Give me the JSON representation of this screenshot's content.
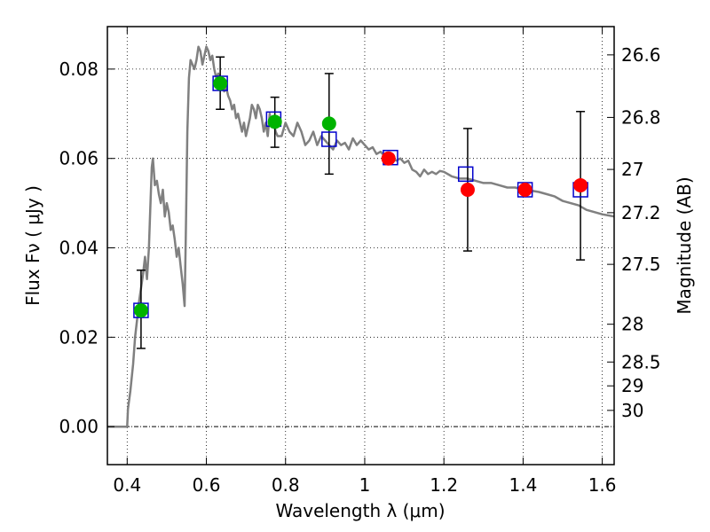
{
  "chart_data": {
    "type": "scatter",
    "xlabel": "Wavelength  λ (μm)",
    "ylabel": "Flux  Fν  ( μJy )",
    "y2label": "Magnitude (AB)",
    "xlim": [
      0.35,
      1.63
    ],
    "ylim": [
      -0.0085,
      0.0895
    ],
    "grid": true,
    "x_ticks": [
      0.4,
      0.6,
      0.8,
      1.0,
      1.2,
      1.4,
      1.6
    ],
    "x_tick_labels": [
      "0.4",
      "0.6",
      "0.8",
      "1",
      "1.2",
      "1.4",
      "1.6"
    ],
    "y_ticks": [
      0.0,
      0.02,
      0.04,
      0.06,
      0.08
    ],
    "y_tick_labels": [
      "0.00",
      "0.02",
      "0.04",
      "0.06",
      "0.08"
    ],
    "mag_ticks": [
      26.6,
      26.8,
      27,
      27.2,
      27.5,
      28,
      28.5,
      29,
      30
    ],
    "mag_tick_labels": [
      "26.6",
      "26.8",
      "27",
      "27.2",
      "27.5",
      "28",
      "28.5",
      "29",
      "30"
    ],
    "colors": {
      "model": "#808080",
      "model_points": "#0000cc",
      "green_points": "#00b300",
      "red_points": "#ff0000",
      "errorbars": "#000000",
      "grid": "#000000"
    },
    "model_spectrum": {
      "x": [
        0.35,
        0.4,
        0.402,
        0.408,
        0.415,
        0.42,
        0.425,
        0.43,
        0.435,
        0.44,
        0.445,
        0.45,
        0.455,
        0.458,
        0.462,
        0.465,
        0.47,
        0.475,
        0.48,
        0.485,
        0.49,
        0.495,
        0.5,
        0.505,
        0.51,
        0.515,
        0.52,
        0.525,
        0.53,
        0.535,
        0.54,
        0.545,
        0.548,
        0.552,
        0.556,
        0.56,
        0.565,
        0.57,
        0.575,
        0.58,
        0.585,
        0.59,
        0.595,
        0.6,
        0.605,
        0.61,
        0.615,
        0.62,
        0.625,
        0.63,
        0.635,
        0.64,
        0.645,
        0.65,
        0.655,
        0.66,
        0.665,
        0.67,
        0.675,
        0.68,
        0.685,
        0.69,
        0.695,
        0.7,
        0.705,
        0.71,
        0.715,
        0.72,
        0.725,
        0.73,
        0.735,
        0.74,
        0.745,
        0.75,
        0.755,
        0.76,
        0.765,
        0.77,
        0.775,
        0.78,
        0.79,
        0.8,
        0.81,
        0.82,
        0.83,
        0.84,
        0.85,
        0.86,
        0.87,
        0.88,
        0.89,
        0.9,
        0.91,
        0.92,
        0.93,
        0.94,
        0.95,
        0.96,
        0.97,
        0.98,
        0.99,
        1.0,
        1.01,
        1.02,
        1.03,
        1.04,
        1.05,
        1.06,
        1.07,
        1.08,
        1.09,
        1.1,
        1.11,
        1.12,
        1.13,
        1.14,
        1.15,
        1.16,
        1.17,
        1.18,
        1.19,
        1.2,
        1.22,
        1.24,
        1.26,
        1.28,
        1.3,
        1.32,
        1.34,
        1.36,
        1.38,
        1.4,
        1.42,
        1.44,
        1.46,
        1.48,
        1.5,
        1.52,
        1.54,
        1.56,
        1.58,
        1.6,
        1.63
      ],
      "y": [
        0.0,
        0.0,
        0.004,
        0.008,
        0.014,
        0.02,
        0.024,
        0.028,
        0.031,
        0.034,
        0.038,
        0.033,
        0.04,
        0.048,
        0.058,
        0.06,
        0.054,
        0.055,
        0.052,
        0.05,
        0.053,
        0.047,
        0.05,
        0.048,
        0.044,
        0.045,
        0.042,
        0.038,
        0.04,
        0.036,
        0.032,
        0.027,
        0.042,
        0.066,
        0.078,
        0.082,
        0.081,
        0.08,
        0.082,
        0.085,
        0.084,
        0.081,
        0.083,
        0.085,
        0.084,
        0.082,
        0.083,
        0.08,
        0.078,
        0.079,
        0.077,
        0.077,
        0.075,
        0.076,
        0.074,
        0.073,
        0.071,
        0.072,
        0.069,
        0.07,
        0.068,
        0.066,
        0.068,
        0.065,
        0.067,
        0.069,
        0.072,
        0.071,
        0.069,
        0.072,
        0.071,
        0.069,
        0.066,
        0.068,
        0.065,
        0.07,
        0.067,
        0.068,
        0.066,
        0.065,
        0.065,
        0.068,
        0.066,
        0.065,
        0.068,
        0.066,
        0.063,
        0.064,
        0.066,
        0.063,
        0.065,
        0.064,
        0.063,
        0.062,
        0.064,
        0.063,
        0.0635,
        0.062,
        0.0645,
        0.063,
        0.064,
        0.063,
        0.062,
        0.0625,
        0.061,
        0.0615,
        0.0605,
        0.061,
        0.06,
        0.0595,
        0.06,
        0.059,
        0.0595,
        0.0575,
        0.057,
        0.056,
        0.0575,
        0.0565,
        0.057,
        0.0565,
        0.0572,
        0.057,
        0.056,
        0.0555,
        0.0555,
        0.055,
        0.0545,
        0.0545,
        0.054,
        0.0535,
        0.0535,
        0.053,
        0.0528,
        0.0525,
        0.052,
        0.0515,
        0.0505,
        0.05,
        0.0495,
        0.0485,
        0.048,
        0.0475,
        0.047
      ]
    },
    "series": [
      {
        "marker": "open-square",
        "x": [
          0.435,
          0.635,
          0.77,
          0.91,
          1.065,
          1.255,
          1.405,
          1.545
        ],
        "y": [
          0.026,
          0.0768,
          0.0688,
          0.0643,
          0.0602,
          0.0565,
          0.053,
          0.053
        ]
      },
      {
        "marker": "filled-circle-green",
        "x": [
          0.435,
          0.635,
          0.773,
          0.91
        ],
        "y": [
          0.026,
          0.0768,
          0.0682,
          0.0678
        ],
        "y_err_low": [
          0.0175,
          0.071,
          0.0625,
          0.0565
        ],
        "y_err_high": [
          0.035,
          0.0827,
          0.0737,
          0.079
        ]
      },
      {
        "marker": "filled-circle-red",
        "x": [
          1.06,
          1.26,
          1.405,
          1.545
        ],
        "y": [
          0.06,
          0.053,
          0.053,
          0.054
        ],
        "y_err_low": [
          null,
          0.0393,
          null,
          0.0373
        ],
        "y_err_high": [
          null,
          0.0667,
          null,
          0.0705
        ]
      }
    ]
  }
}
